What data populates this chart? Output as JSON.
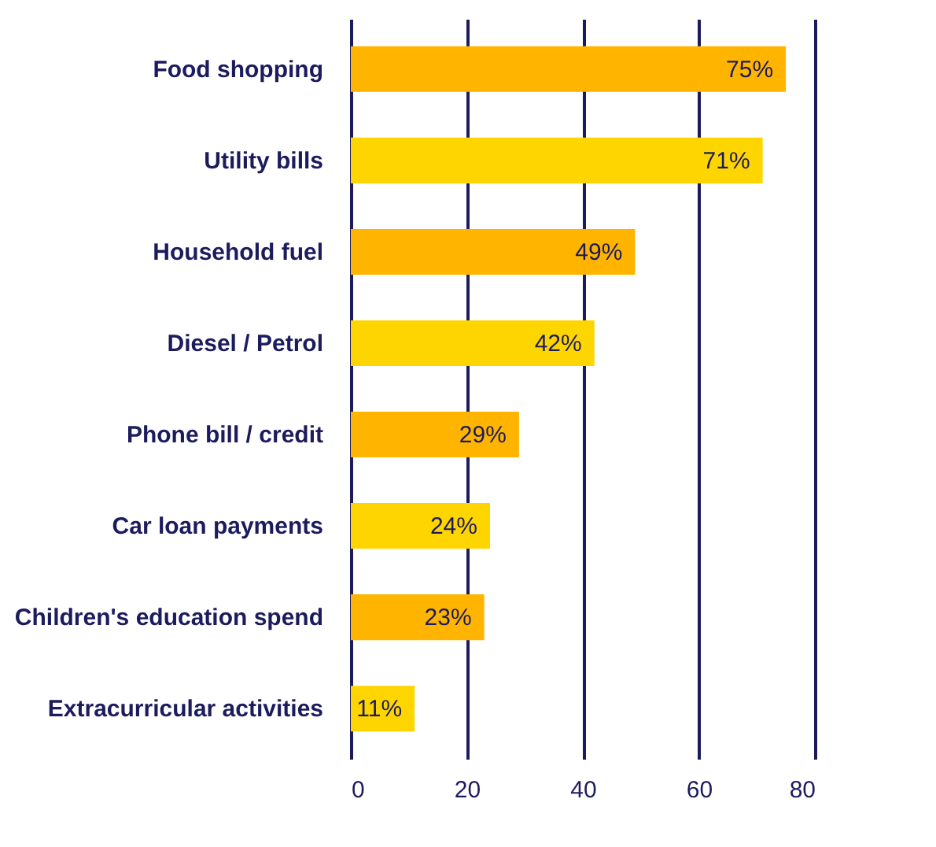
{
  "chart_data": {
    "type": "bar",
    "orientation": "horizontal",
    "categories": [
      "Food shopping",
      "Utility bills",
      "Household fuel",
      "Diesel / Petrol",
      "Phone bill / credit",
      "Car loan payments",
      "Children's education spend",
      "Extracurricular activities"
    ],
    "values": [
      75,
      71,
      49,
      42,
      29,
      24,
      23,
      11
    ],
    "colors": [
      "#ffb400",
      "#ffd500",
      "#ffb400",
      "#ffd500",
      "#ffb400",
      "#ffd500",
      "#ffb400",
      "#ffd500"
    ],
    "value_labels": [
      "75%",
      "71%",
      "49%",
      "42%",
      "29%",
      "24%",
      "23%",
      "11%"
    ],
    "xlim": [
      0,
      80
    ],
    "xticks": [
      0,
      20,
      40,
      60,
      80
    ],
    "grid": "x"
  }
}
